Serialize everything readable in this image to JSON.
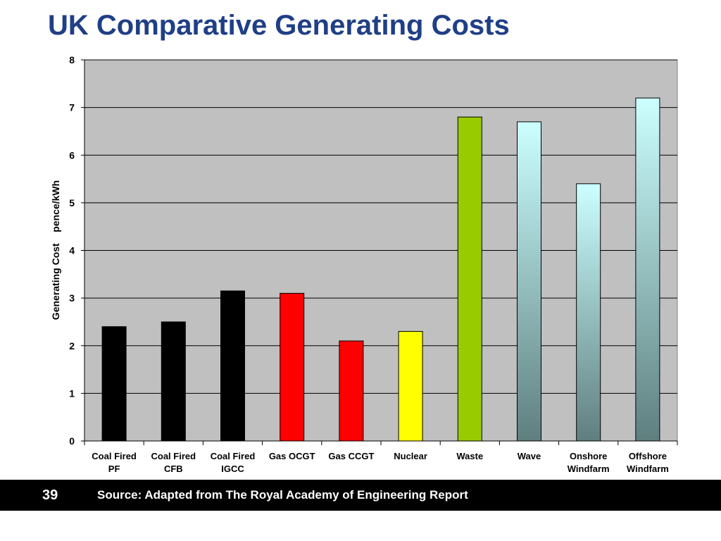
{
  "slide": {
    "title": "UK Comparative Generating Costs",
    "page_number": "39",
    "source": "Source: Adapted from The Royal Academy of Engineering Report"
  },
  "chart_data": {
    "type": "bar",
    "title": "",
    "xlabel": "",
    "ylabel": "Generating Cost    pence/kWh",
    "ylim": [
      0,
      8
    ],
    "yticks": [
      0,
      1,
      2,
      3,
      4,
      5,
      6,
      7,
      8
    ],
    "grid": "horizontal",
    "categories": [
      [
        "Coal Fired",
        "PF"
      ],
      [
        "Coal Fired",
        "CFB"
      ],
      [
        "Coal Fired",
        "IGCC"
      ],
      [
        "Gas OCGT"
      ],
      [
        "Gas CCGT"
      ],
      [
        "Nuclear"
      ],
      [
        "Waste"
      ],
      [
        "Wave"
      ],
      [
        "Onshore",
        "Windfarm"
      ],
      [
        "Offshore",
        "Windfarm"
      ]
    ],
    "values": [
      2.4,
      2.5,
      3.15,
      3.1,
      2.1,
      2.3,
      6.8,
      6.7,
      5.4,
      7.2
    ],
    "bar_colors": [
      "#000000",
      "#000000",
      "#000000",
      "#ff0000",
      "#ff0000",
      "#ffff00",
      "#99cc00",
      "gradient",
      "gradient",
      "gradient"
    ],
    "plot_background": "#c0c0c0",
    "gradient_colors": [
      "#ccffff",
      "#5f7f7f"
    ]
  }
}
